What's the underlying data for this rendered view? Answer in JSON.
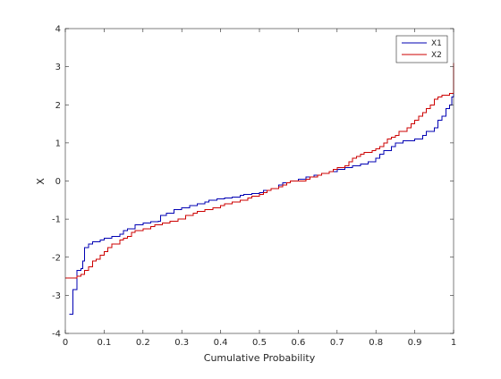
{
  "chart_data": {
    "type": "line",
    "title": "",
    "xlabel": "Cumulative Probability",
    "ylabel": "X",
    "xlim": [
      0,
      1
    ],
    "ylim": [
      -4,
      4
    ],
    "x_ticks": [
      0,
      0.1,
      0.2,
      0.3,
      0.4,
      0.5,
      0.6,
      0.7,
      0.8,
      0.9,
      1
    ],
    "x_tick_labels": [
      "0",
      "0.1",
      "0.2",
      "0.3",
      "0.4",
      "0.5",
      "0.6",
      "0.7",
      "0.8",
      "0.9",
      "1"
    ],
    "y_ticks": [
      -4,
      -3,
      -2,
      -1,
      0,
      1,
      2,
      3,
      4
    ],
    "y_tick_labels": [
      "-4",
      "-3",
      "-2",
      "-1",
      "0",
      "1",
      "2",
      "3",
      "4"
    ],
    "grid": false,
    "legend_position": "top-right",
    "step_plot": true,
    "series": [
      {
        "name": "X1",
        "color": "#0000b3",
        "points": [
          [
            0.01,
            -3.5
          ],
          [
            0.02,
            -2.85
          ],
          [
            0.03,
            -2.35
          ],
          [
            0.04,
            -2.3
          ],
          [
            0.045,
            -2.1
          ],
          [
            0.05,
            -1.75
          ],
          [
            0.06,
            -1.65
          ],
          [
            0.07,
            -1.6
          ],
          [
            0.09,
            -1.55
          ],
          [
            0.1,
            -1.5
          ],
          [
            0.12,
            -1.45
          ],
          [
            0.14,
            -1.4
          ],
          [
            0.15,
            -1.3
          ],
          [
            0.16,
            -1.25
          ],
          [
            0.18,
            -1.15
          ],
          [
            0.2,
            -1.1
          ],
          [
            0.22,
            -1.07
          ],
          [
            0.24,
            -1.05
          ],
          [
            0.245,
            -0.9
          ],
          [
            0.26,
            -0.85
          ],
          [
            0.28,
            -0.75
          ],
          [
            0.3,
            -0.7
          ],
          [
            0.32,
            -0.65
          ],
          [
            0.34,
            -0.6
          ],
          [
            0.36,
            -0.55
          ],
          [
            0.37,
            -0.5
          ],
          [
            0.39,
            -0.47
          ],
          [
            0.41,
            -0.45
          ],
          [
            0.43,
            -0.42
          ],
          [
            0.45,
            -0.38
          ],
          [
            0.46,
            -0.35
          ],
          [
            0.48,
            -0.33
          ],
          [
            0.5,
            -0.3
          ],
          [
            0.51,
            -0.25
          ],
          [
            0.53,
            -0.2
          ],
          [
            0.55,
            -0.1
          ],
          [
            0.56,
            -0.05
          ],
          [
            0.58,
            0.0
          ],
          [
            0.6,
            0.05
          ],
          [
            0.62,
            0.1
          ],
          [
            0.64,
            0.15
          ],
          [
            0.66,
            0.2
          ],
          [
            0.68,
            0.25
          ],
          [
            0.7,
            0.3
          ],
          [
            0.72,
            0.35
          ],
          [
            0.74,
            0.4
          ],
          [
            0.76,
            0.45
          ],
          [
            0.78,
            0.5
          ],
          [
            0.8,
            0.6
          ],
          [
            0.81,
            0.7
          ],
          [
            0.82,
            0.8
          ],
          [
            0.84,
            0.9
          ],
          [
            0.85,
            1.0
          ],
          [
            0.87,
            1.05
          ],
          [
            0.9,
            1.1
          ],
          [
            0.92,
            1.2
          ],
          [
            0.93,
            1.3
          ],
          [
            0.95,
            1.4
          ],
          [
            0.96,
            1.6
          ],
          [
            0.97,
            1.7
          ],
          [
            0.98,
            1.9
          ],
          [
            0.99,
            2.0
          ],
          [
            0.995,
            2.2
          ],
          [
            1.0,
            2.3
          ]
        ]
      },
      {
        "name": "X2",
        "color": "#cc0000",
        "points": [
          [
            0.0,
            -2.55
          ],
          [
            0.03,
            -2.5
          ],
          [
            0.04,
            -2.45
          ],
          [
            0.05,
            -2.35
          ],
          [
            0.06,
            -2.25
          ],
          [
            0.07,
            -2.1
          ],
          [
            0.08,
            -2.05
          ],
          [
            0.09,
            -1.95
          ],
          [
            0.1,
            -1.85
          ],
          [
            0.11,
            -1.75
          ],
          [
            0.12,
            -1.65
          ],
          [
            0.14,
            -1.55
          ],
          [
            0.15,
            -1.5
          ],
          [
            0.16,
            -1.45
          ],
          [
            0.17,
            -1.35
          ],
          [
            0.18,
            -1.3
          ],
          [
            0.2,
            -1.25
          ],
          [
            0.22,
            -1.2
          ],
          [
            0.23,
            -1.15
          ],
          [
            0.25,
            -1.1
          ],
          [
            0.27,
            -1.05
          ],
          [
            0.29,
            -1.0
          ],
          [
            0.31,
            -0.9
          ],
          [
            0.33,
            -0.85
          ],
          [
            0.34,
            -0.8
          ],
          [
            0.36,
            -0.75
          ],
          [
            0.38,
            -0.7
          ],
          [
            0.4,
            -0.65
          ],
          [
            0.41,
            -0.6
          ],
          [
            0.43,
            -0.55
          ],
          [
            0.45,
            -0.5
          ],
          [
            0.47,
            -0.45
          ],
          [
            0.48,
            -0.4
          ],
          [
            0.5,
            -0.35
          ],
          [
            0.51,
            -0.3
          ],
          [
            0.52,
            -0.25
          ],
          [
            0.53,
            -0.2
          ],
          [
            0.55,
            -0.15
          ],
          [
            0.56,
            -0.1
          ],
          [
            0.57,
            -0.05
          ],
          [
            0.58,
            0.0
          ],
          [
            0.62,
            0.05
          ],
          [
            0.63,
            0.1
          ],
          [
            0.65,
            0.15
          ],
          [
            0.66,
            0.2
          ],
          [
            0.68,
            0.25
          ],
          [
            0.69,
            0.3
          ],
          [
            0.7,
            0.35
          ],
          [
            0.72,
            0.4
          ],
          [
            0.73,
            0.5
          ],
          [
            0.74,
            0.6
          ],
          [
            0.75,
            0.65
          ],
          [
            0.76,
            0.7
          ],
          [
            0.77,
            0.75
          ],
          [
            0.79,
            0.8
          ],
          [
            0.8,
            0.85
          ],
          [
            0.81,
            0.9
          ],
          [
            0.82,
            1.0
          ],
          [
            0.83,
            1.1
          ],
          [
            0.84,
            1.15
          ],
          [
            0.85,
            1.2
          ],
          [
            0.86,
            1.3
          ],
          [
            0.88,
            1.4
          ],
          [
            0.89,
            1.5
          ],
          [
            0.9,
            1.6
          ],
          [
            0.91,
            1.7
          ],
          [
            0.92,
            1.8
          ],
          [
            0.93,
            1.9
          ],
          [
            0.94,
            2.0
          ],
          [
            0.95,
            2.15
          ],
          [
            0.96,
            2.2
          ],
          [
            0.97,
            2.25
          ],
          [
            0.99,
            2.3
          ],
          [
            1.0,
            2.4
          ],
          [
            1.001,
            3.1
          ]
        ]
      }
    ]
  }
}
